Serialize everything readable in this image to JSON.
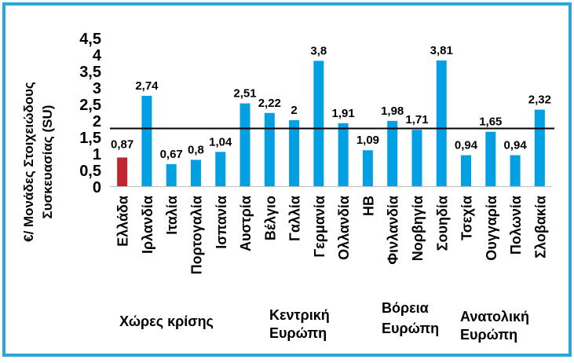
{
  "chart_data": {
    "type": "bar",
    "ylabel": "€/ Μονάδες Στοιχειώδους Συσκευασίας (SU)",
    "ylim": [
      0,
      4.5
    ],
    "yticks": [
      "0",
      "0,5",
      "1",
      "1,5",
      "2",
      "2,5",
      "3",
      "3,5",
      "4",
      "4,5"
    ],
    "grid": false,
    "legend": "none",
    "categories": [
      "Ελλάδα",
      "Ιρλανδία",
      "Ιταλία",
      "Πορτογαλία",
      "Ισπανία",
      "Αυστρία",
      "Βέλγιο",
      "Γαλλία",
      "Γερμανία",
      "Ολλανδία",
      "ΗΒ",
      "Φινλανδία",
      "Νορβηγία",
      "Σουηδία",
      "Τσεχία",
      "Ουγγαρία",
      "Πολωνία",
      "Σλοβακία"
    ],
    "values": [
      0.87,
      2.74,
      0.67,
      0.8,
      1.04,
      2.51,
      2.22,
      2,
      3.8,
      1.91,
      1.09,
      1.98,
      1.71,
      3.81,
      0.94,
      1.65,
      0.94,
      2.32
    ],
    "value_labels": [
      "0,87",
      "2,74",
      "0,67",
      "0,8",
      "1,04",
      "2,51",
      "2,22",
      "2",
      "3,8",
      "1,91",
      "1,09",
      "1,98",
      "1,71",
      "3,81",
      "0,94",
      "1,65",
      "0,94",
      "2,32"
    ],
    "highlight_index": 0,
    "reference_line": 1.75,
    "groups": [
      {
        "lines": [
          "Χώρες κρίσης"
        ]
      },
      {
        "lines": [
          "Κεντρική",
          "Ευρώπη"
        ]
      },
      {
        "lines": [
          "Βόρεια",
          "Ευρώπη"
        ]
      },
      {
        "lines": [
          "Ανατολική",
          "Ευρώπη"
        ]
      }
    ],
    "colors": {
      "bar": "#00a0e3",
      "highlight": "#c0262d",
      "border": "#2aa7d8",
      "line": "#000000"
    }
  }
}
